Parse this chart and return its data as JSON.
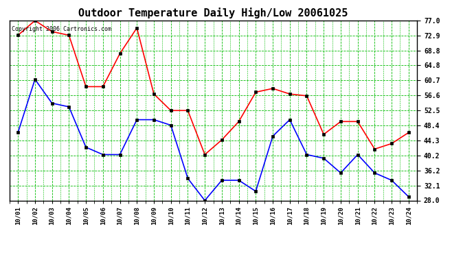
{
  "title": "Outdoor Temperature Daily High/Low 20061025",
  "copyright": "Copyright 2006 Cartronics.com",
  "dates": [
    "10/01",
    "10/02",
    "10/03",
    "10/04",
    "10/05",
    "10/06",
    "10/07",
    "10/08",
    "10/09",
    "10/10",
    "10/11",
    "10/12",
    "10/13",
    "10/14",
    "10/15",
    "10/16",
    "10/17",
    "10/18",
    "10/19",
    "10/20",
    "10/21",
    "10/22",
    "10/23",
    "10/24"
  ],
  "high": [
    73.0,
    77.0,
    74.0,
    73.0,
    59.0,
    59.0,
    68.0,
    75.0,
    57.0,
    52.5,
    52.5,
    40.5,
    44.5,
    49.5,
    57.5,
    58.5,
    57.0,
    56.5,
    46.0,
    49.5,
    49.5,
    42.0,
    43.5,
    46.5
  ],
  "low": [
    46.5,
    61.0,
    54.5,
    53.5,
    42.5,
    40.5,
    40.5,
    50.0,
    50.0,
    48.5,
    34.0,
    28.0,
    33.5,
    33.5,
    30.5,
    45.5,
    50.0,
    40.5,
    39.5,
    35.5,
    40.5,
    35.5,
    33.5,
    29.0
  ],
  "ylim": [
    28.0,
    77.0
  ],
  "yticks": [
    28.0,
    32.1,
    36.2,
    40.2,
    44.3,
    48.4,
    52.5,
    56.6,
    60.7,
    64.8,
    68.8,
    72.9,
    77.0
  ],
  "high_color": "#ff0000",
  "low_color": "#0000ff",
  "bg_color": "#ffffff",
  "plot_bg_color": "#ffffff",
  "grid_color": "#00bb00",
  "title_fontsize": 11,
  "marker_size": 3,
  "line_width": 1.2
}
